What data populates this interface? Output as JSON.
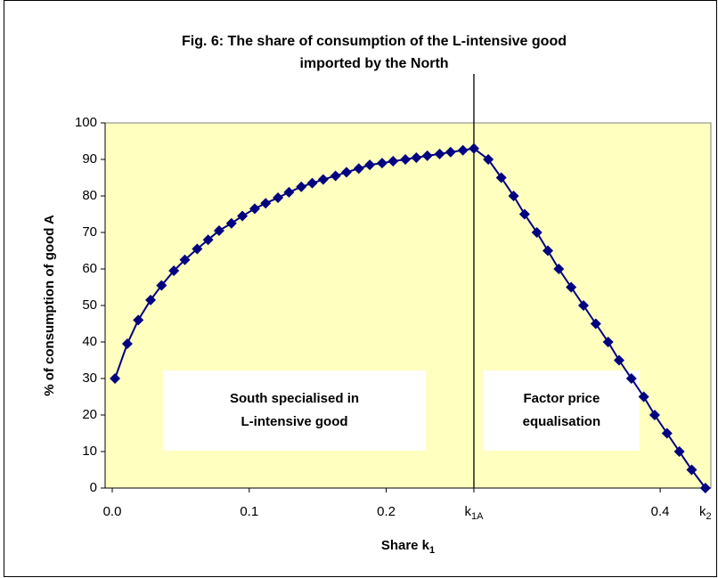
{
  "chart_data": {
    "type": "line",
    "title": [
      "Fig. 6: The share of consumption of the L-intensive good",
      "imported by the North"
    ],
    "xlabel": "Share k",
    "xlabel_sub": "1",
    "ylabel": "% of consumption of good A",
    "x": [
      0.002,
      0.011,
      0.019,
      0.028,
      0.036,
      0.045,
      0.053,
      0.062,
      0.07,
      0.078,
      0.087,
      0.095,
      0.104,
      0.112,
      0.121,
      0.129,
      0.138,
      0.146,
      0.154,
      0.163,
      0.171,
      0.18,
      0.188,
      0.197,
      0.205,
      0.214,
      0.222,
      0.23,
      0.239,
      0.247,
      0.256,
      0.264,
      0.2745,
      0.284,
      0.293,
      0.301,
      0.31,
      0.318,
      0.326,
      0.335,
      0.344,
      0.353,
      0.362,
      0.37,
      0.379,
      0.388,
      0.396,
      0.405,
      0.414,
      0.423,
      0.433
    ],
    "values": [
      30,
      39.5,
      46,
      51.5,
      55.5,
      59.5,
      62.5,
      65.5,
      68,
      70.5,
      72.5,
      74.5,
      76.5,
      78,
      79.5,
      81,
      82.5,
      83.5,
      84.5,
      85.5,
      86.5,
      87.5,
      88.5,
      89,
      89.5,
      90,
      90.5,
      91,
      91.5,
      92,
      92.5,
      93,
      90,
      85,
      80,
      75,
      70,
      65,
      60,
      55,
      50,
      45,
      40,
      35,
      30,
      25,
      20,
      15,
      10,
      5,
      0
    ],
    "color": "#000080",
    "xlim": [
      -0.0052,
      0.437
    ],
    "ylim": [
      0,
      100
    ],
    "xticks": [
      {
        "value": 0,
        "label": "0.0"
      },
      0.1,
      0.2,
      {
        "value": 0.264,
        "label": "k",
        "sub": "1A"
      },
      0.4,
      {
        "value": 0.433,
        "label": "k",
        "sub": "2"
      }
    ],
    "yticks": [
      0,
      10,
      20,
      30,
      40,
      50,
      60,
      70,
      80,
      90,
      100
    ],
    "vlines": [
      0.264
    ],
    "annotations": [
      {
        "lines": [
          "South specialised in",
          "L-intensive good"
        ],
        "x": [
          0.037,
          0.229
        ]
      },
      {
        "lines": [
          "Factor price",
          "equalisation"
        ],
        "x": [
          0.271,
          0.385
        ]
      }
    ],
    "background": "#ffffc0"
  }
}
